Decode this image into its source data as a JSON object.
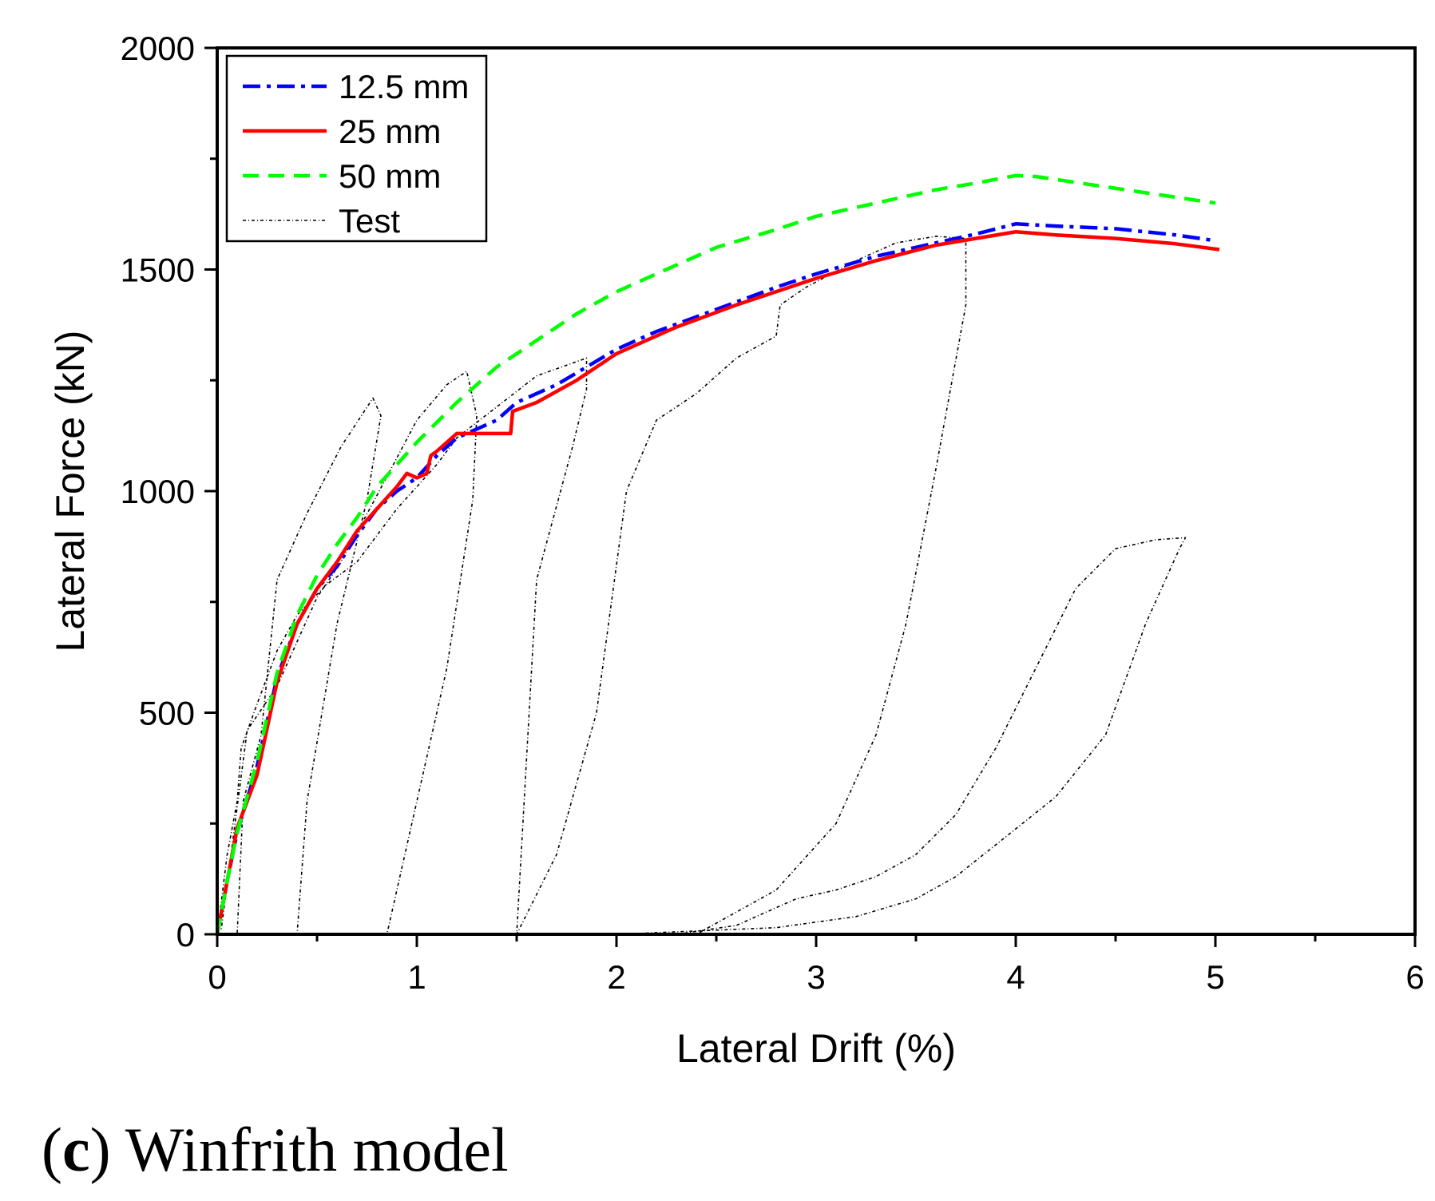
{
  "chart_data": {
    "type": "line",
    "xlabel": "Lateral Drift (%)",
    "ylabel": "Lateral Force (kN)",
    "xlim": [
      0,
      6
    ],
    "ylim": [
      0,
      2000
    ],
    "x_ticks": [
      0,
      1,
      2,
      3,
      4,
      5,
      6
    ],
    "y_ticks": [
      0,
      500,
      1000,
      1500,
      2000
    ],
    "x_tick_labels": [
      "0",
      "1",
      "2",
      "3",
      "4",
      "5",
      "6"
    ],
    "y_tick_labels": [
      "0",
      "500",
      "1000",
      "1500",
      "2000"
    ],
    "legend_position": "top-left",
    "series": [
      {
        "name": "12.5 mm",
        "color": "#0000ff",
        "style": "dash-dot",
        "points": [
          [
            0,
            0
          ],
          [
            0.05,
            120
          ],
          [
            0.1,
            230
          ],
          [
            0.2,
            380
          ],
          [
            0.3,
            580
          ],
          [
            0.4,
            700
          ],
          [
            0.5,
            780
          ],
          [
            0.6,
            830
          ],
          [
            0.7,
            900
          ],
          [
            0.8,
            960
          ],
          [
            0.9,
            1000
          ],
          [
            1.0,
            1030
          ],
          [
            1.1,
            1080
          ],
          [
            1.2,
            1120
          ],
          [
            1.4,
            1160
          ],
          [
            1.5,
            1200
          ],
          [
            1.7,
            1240
          ],
          [
            2.0,
            1320
          ],
          [
            2.2,
            1360
          ],
          [
            2.5,
            1410
          ],
          [
            2.8,
            1460
          ],
          [
            3.0,
            1490
          ],
          [
            3.3,
            1530
          ],
          [
            3.6,
            1560
          ],
          [
            3.8,
            1580
          ],
          [
            4.0,
            1603
          ],
          [
            4.2,
            1598
          ],
          [
            4.5,
            1592
          ],
          [
            4.8,
            1578
          ],
          [
            5.0,
            1565
          ]
        ]
      },
      {
        "name": "25 mm",
        "color": "#ff0000",
        "style": "solid",
        "points": [
          [
            0,
            0
          ],
          [
            0.05,
            120
          ],
          [
            0.1,
            240
          ],
          [
            0.2,
            360
          ],
          [
            0.3,
            570
          ],
          [
            0.4,
            700
          ],
          [
            0.5,
            780
          ],
          [
            0.6,
            840
          ],
          [
            0.7,
            910
          ],
          [
            0.8,
            960
          ],
          [
            0.9,
            1010
          ],
          [
            0.95,
            1040
          ],
          [
            1.0,
            1030
          ],
          [
            1.05,
            1040
          ],
          [
            1.07,
            1080
          ],
          [
            1.1,
            1090
          ],
          [
            1.2,
            1130
          ],
          [
            1.35,
            1130
          ],
          [
            1.47,
            1130
          ],
          [
            1.48,
            1180
          ],
          [
            1.6,
            1200
          ],
          [
            1.8,
            1250
          ],
          [
            2.0,
            1310
          ],
          [
            2.3,
            1370
          ],
          [
            2.6,
            1420
          ],
          [
            3.0,
            1480
          ],
          [
            3.3,
            1520
          ],
          [
            3.6,
            1555
          ],
          [
            3.8,
            1570
          ],
          [
            4.0,
            1585
          ],
          [
            4.2,
            1578
          ],
          [
            4.5,
            1570
          ],
          [
            4.8,
            1558
          ],
          [
            5.02,
            1545
          ]
        ]
      },
      {
        "name": "50 mm",
        "color": "#00ff00",
        "style": "dashed",
        "points": [
          [
            0,
            0
          ],
          [
            0.05,
            120
          ],
          [
            0.1,
            230
          ],
          [
            0.2,
            390
          ],
          [
            0.3,
            590
          ],
          [
            0.4,
            720
          ],
          [
            0.5,
            810
          ],
          [
            0.6,
            880
          ],
          [
            0.7,
            940
          ],
          [
            0.8,
            1010
          ],
          [
            0.9,
            1060
          ],
          [
            1.0,
            1110
          ],
          [
            1.2,
            1200
          ],
          [
            1.4,
            1280
          ],
          [
            1.6,
            1340
          ],
          [
            1.8,
            1400
          ],
          [
            2.0,
            1450
          ],
          [
            2.2,
            1490
          ],
          [
            2.5,
            1550
          ],
          [
            2.8,
            1590
          ],
          [
            3.0,
            1620
          ],
          [
            3.3,
            1650
          ],
          [
            3.6,
            1680
          ],
          [
            3.8,
            1695
          ],
          [
            4.0,
            1712
          ],
          [
            4.1,
            1710
          ],
          [
            4.4,
            1690
          ],
          [
            4.7,
            1670
          ],
          [
            5.0,
            1650
          ]
        ]
      },
      {
        "name": "Test",
        "color": "#000000",
        "style": "dotted",
        "points": [
          [
            0,
            0
          ],
          [
            0.05,
            180
          ],
          [
            0.1,
            300
          ],
          [
            0.12,
            420
          ],
          [
            0.2,
            520
          ],
          [
            0.3,
            640
          ],
          [
            0.4,
            720
          ],
          [
            0.55,
            790
          ],
          [
            0.7,
            840
          ],
          [
            0.9,
            960
          ],
          [
            1.0,
            1010
          ],
          [
            1.1,
            1060
          ],
          [
            1.2,
            1120
          ],
          [
            1.4,
            1190
          ],
          [
            1.6,
            1260
          ],
          [
            1.85,
            1300
          ],
          [
            1.85,
            1230
          ],
          [
            1.78,
            1100
          ],
          [
            1.6,
            800
          ],
          [
            1.5,
            0
          ],
          [
            1.5,
            0
          ],
          [
            1.7,
            180
          ],
          [
            1.9,
            500
          ],
          [
            2.05,
            1000
          ],
          [
            2.2,
            1160
          ],
          [
            2.4,
            1220
          ],
          [
            2.6,
            1300
          ],
          [
            2.8,
            1350
          ],
          [
            2.82,
            1420
          ],
          [
            2.95,
            1460
          ],
          [
            3.2,
            1520
          ],
          [
            3.4,
            1560
          ],
          [
            3.6,
            1575
          ],
          [
            3.75,
            1570
          ],
          [
            3.75,
            1420
          ],
          [
            3.6,
            1050
          ],
          [
            3.45,
            700
          ],
          [
            3.3,
            450
          ],
          [
            3.1,
            250
          ],
          [
            2.8,
            100
          ],
          [
            2.4,
            0
          ],
          [
            2.3,
            0
          ],
          [
            2.6,
            20
          ],
          [
            2.9,
            80
          ],
          [
            3.1,
            100
          ],
          [
            3.3,
            130
          ],
          [
            3.5,
            180
          ],
          [
            3.7,
            270
          ],
          [
            3.9,
            420
          ],
          [
            4.1,
            600
          ],
          [
            4.3,
            780
          ],
          [
            4.5,
            870
          ],
          [
            4.7,
            890
          ],
          [
            4.85,
            895
          ],
          [
            4.82,
            870
          ],
          [
            4.65,
            700
          ],
          [
            4.45,
            450
          ],
          [
            4.2,
            310
          ],
          [
            3.95,
            220
          ],
          [
            3.7,
            130
          ],
          [
            3.5,
            80
          ],
          [
            3.2,
            40
          ],
          [
            2.8,
            15
          ],
          [
            2.0,
            0
          ],
          [
            0.1,
            0
          ],
          [
            0.13,
            300
          ],
          [
            0.22,
            450
          ],
          [
            0.3,
            800
          ],
          [
            0.45,
            950
          ],
          [
            0.62,
            1100
          ],
          [
            0.78,
            1210
          ],
          [
            0.82,
            1170
          ],
          [
            0.75,
            980
          ],
          [
            0.6,
            700
          ],
          [
            0.45,
            300
          ],
          [
            0.4,
            0
          ],
          [
            0.85,
            0
          ],
          [
            0.95,
            200
          ],
          [
            1.15,
            600
          ],
          [
            1.28,
            980
          ],
          [
            1.3,
            1170
          ],
          [
            1.25,
            1270
          ],
          [
            1.15,
            1240
          ],
          [
            1.0,
            1160
          ],
          [
            0.8,
            990
          ],
          [
            0.62,
            840
          ],
          [
            0.5,
            760
          ],
          [
            0.3,
            560
          ],
          [
            0.15,
            460
          ],
          [
            0.02,
            10
          ]
        ]
      }
    ]
  },
  "caption": {
    "label": "(c)",
    "label_letter": "c",
    "text": "Winfrith model"
  }
}
